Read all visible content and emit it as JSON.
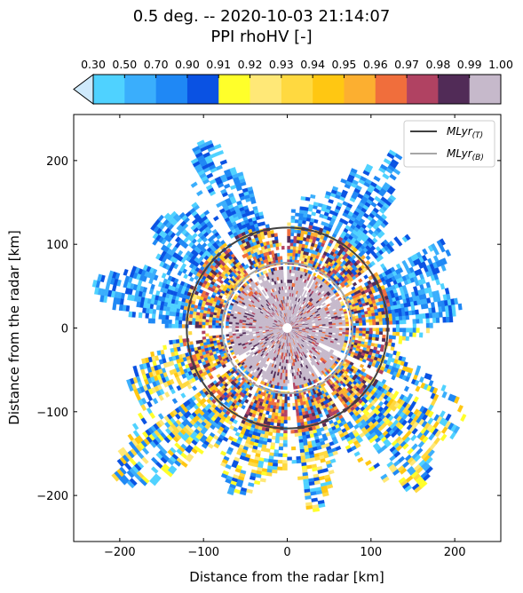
{
  "title_line1": "0.5 deg. -- 2020-10-03 21:14:07",
  "title_line2": "PPI rhoHV [-]",
  "chart_data": {
    "type": "heatmap",
    "xlabel": "Distance from the radar [km]",
    "ylabel": "Distance from the radar [km]",
    "xlim": [
      -255,
      255
    ],
    "ylim": [
      -255,
      255
    ],
    "xticks": [
      -200,
      -100,
      0,
      100,
      200
    ],
    "yticks": [
      -200,
      -100,
      0,
      100,
      200
    ],
    "xtick_labels": [
      "−200",
      "−100",
      "0",
      "100",
      "200"
    ],
    "ytick_labels": [
      "−200",
      "−100",
      "0",
      "100",
      "200"
    ],
    "colorbar": {
      "boundaries": [
        "0.30",
        "0.50",
        "0.70",
        "0.90",
        "0.91",
        "0.92",
        "0.93",
        "0.94",
        "0.95",
        "0.96",
        "0.97",
        "0.98",
        "0.99",
        "1.00"
      ],
      "colors": [
        "#4fd2ff",
        "#3aaefc",
        "#1f88f5",
        "#0a52e3",
        "#ffff2a",
        "#ffe877",
        "#ffd940",
        "#ffc712",
        "#fcaf30",
        "#f06e3c",
        "#b04262",
        "#512b57",
        "#c6b9cb"
      ],
      "under_color": "#cfeafc"
    },
    "legend": {
      "placement": "upper-right",
      "entries": [
        {
          "main": "MLyr",
          "sub": "(T)",
          "color": "#404040",
          "radius_km": 120
        },
        {
          "main": "MLyr",
          "sub": "(B)",
          "color": "#a6a6a6",
          "radius_km": 78
        }
      ]
    },
    "echo_extent_km": {
      "north": 175,
      "south": 205,
      "east": 200,
      "west": 200
    },
    "high_rhohv_core_km": 70
  }
}
